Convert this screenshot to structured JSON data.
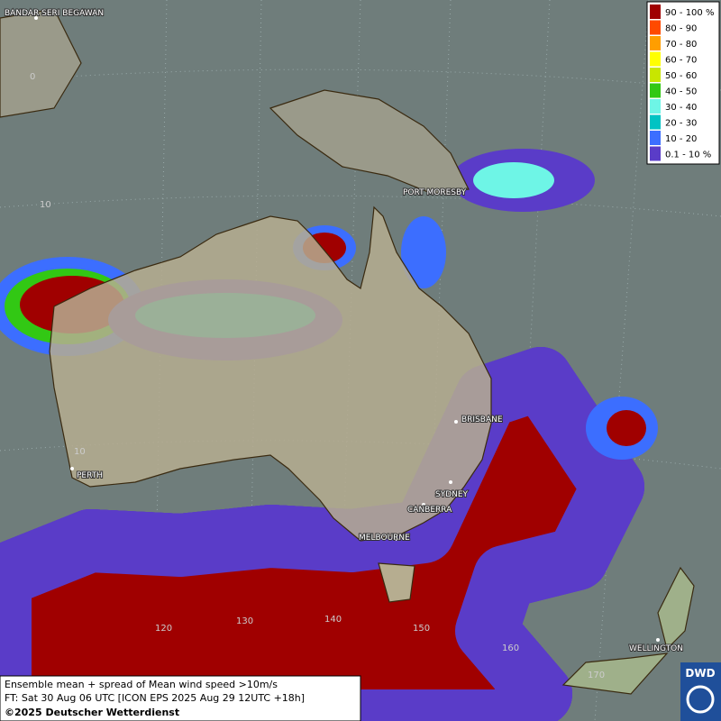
{
  "legend": {
    "items": [
      {
        "label": "90 - 100 %",
        "color": "#a00000"
      },
      {
        "label": "80 - 90",
        "color": "#ff4a00"
      },
      {
        "label": "70 - 80",
        "color": "#ff9e00"
      },
      {
        "label": "60 - 70",
        "color": "#ffff00"
      },
      {
        "label": "50 - 60",
        "color": "#c8e600"
      },
      {
        "label": "40 - 50",
        "color": "#32c814"
      },
      {
        "label": "30 - 40",
        "color": "#6ef5e6"
      },
      {
        "label": "20 - 30",
        "color": "#00c3c3"
      },
      {
        "label": "10 - 20",
        "color": "#3c6eff"
      },
      {
        "label": "0.1 - 10 %",
        "color": "#5a3cc8"
      }
    ]
  },
  "places": [
    "BANDAR SERI BEGAWAN",
    "PORT MORESBY",
    "BRISBANE",
    "SYDNEY",
    "CANBERRA",
    "MELBOURNE",
    "PERTH",
    "WELLINGTON"
  ],
  "grid_labels": [
    "0",
    "10",
    "10",
    "120",
    "130",
    "140",
    "150",
    "160",
    "170"
  ],
  "footer": {
    "line1": "Ensemble mean + spread of Mean wind speed >10m/s",
    "line2": "FT: Sat 30 Aug 06 UTC [ICON EPS 2025 Aug 29 12UTC +18h]",
    "line3": "©2025 Deutscher Wetterdienst"
  },
  "logo": "DWD"
}
